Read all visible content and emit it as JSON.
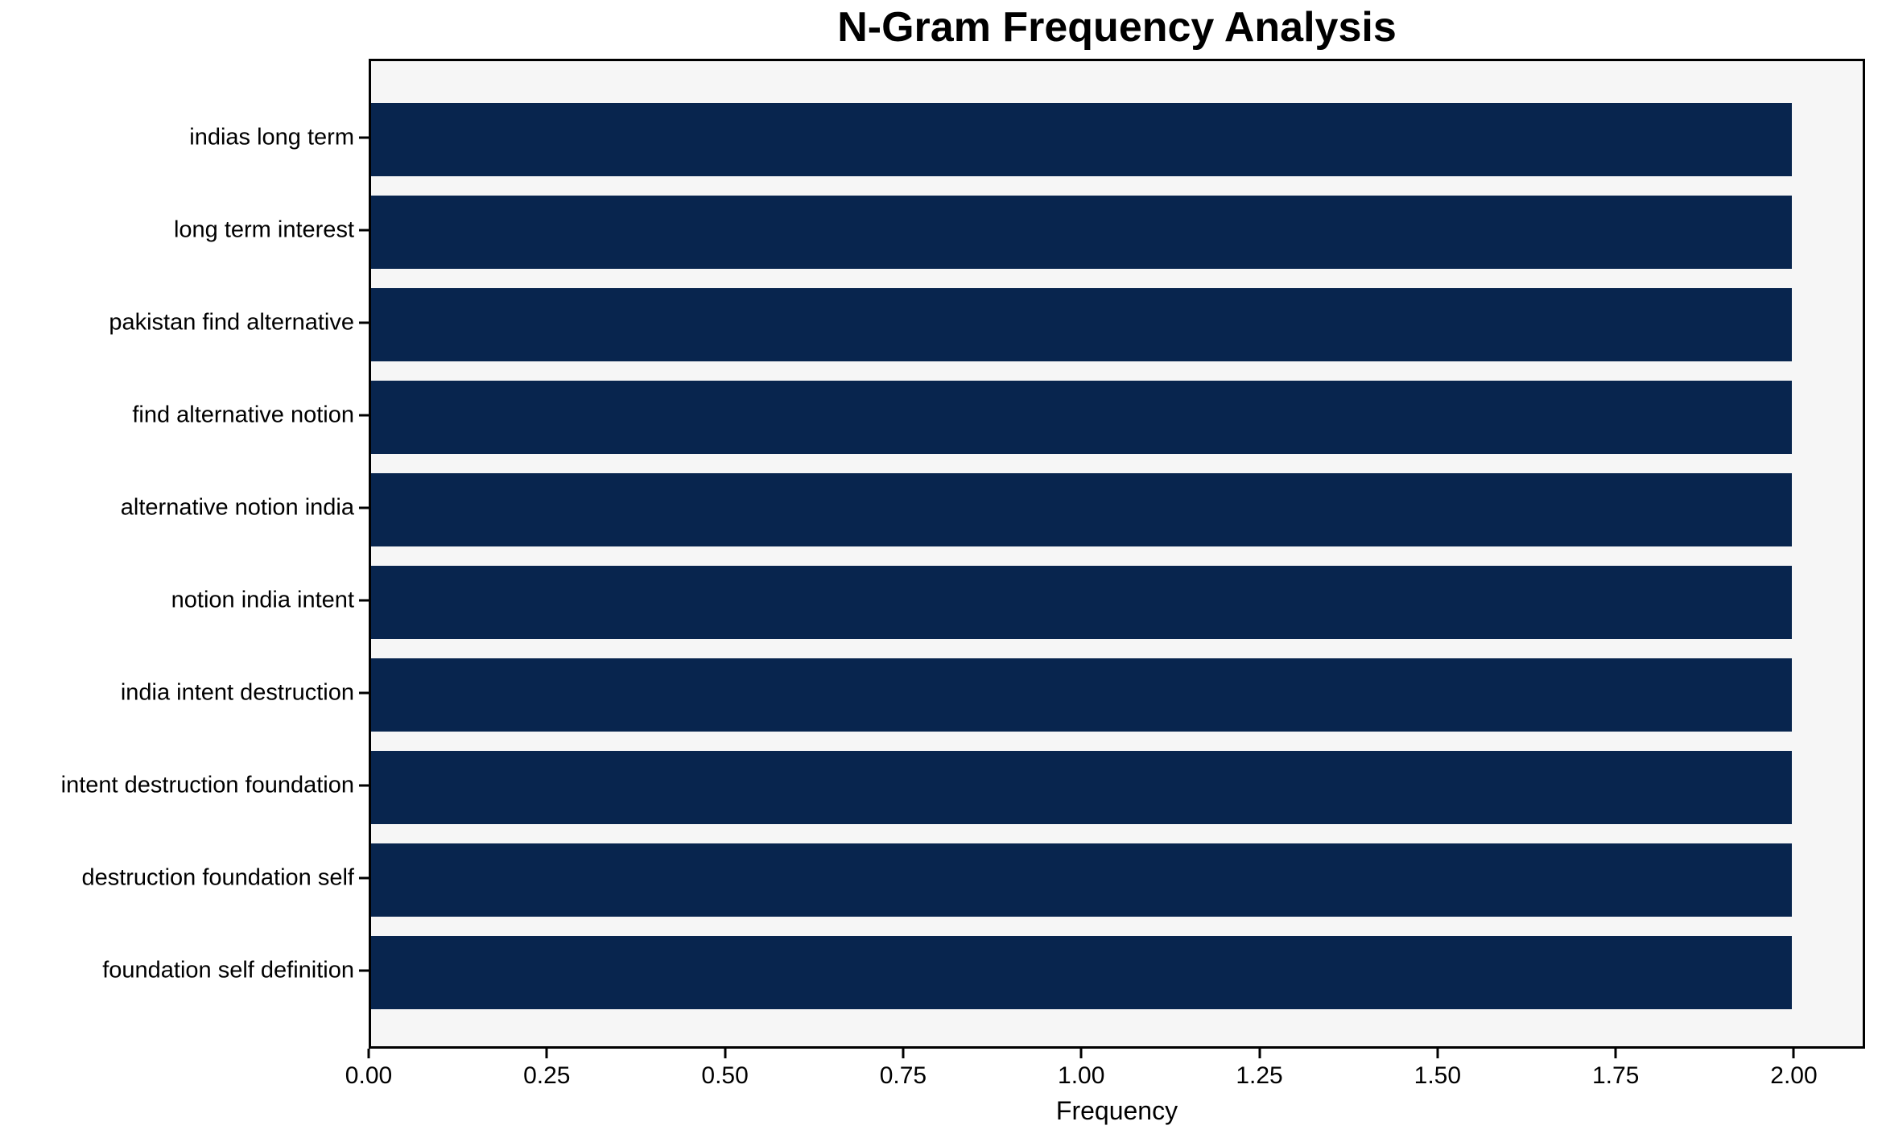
{
  "chart_data": {
    "type": "bar",
    "orientation": "horizontal",
    "title": "N-Gram Frequency Analysis",
    "xlabel": "Frequency",
    "ylabel": "",
    "categories": [
      "indias long term",
      "long term interest",
      "pakistan find alternative",
      "find alternative notion",
      "alternative notion india",
      "notion india intent",
      "india intent destruction",
      "intent destruction foundation",
      "destruction foundation self",
      "foundation self definition"
    ],
    "values": [
      2,
      2,
      2,
      2,
      2,
      2,
      2,
      2,
      2,
      2
    ],
    "xlim": [
      0,
      2.1
    ],
    "xticks": [
      {
        "label": "0.00",
        "value": 0.0
      },
      {
        "label": "0.25",
        "value": 0.25
      },
      {
        "label": "0.50",
        "value": 0.5
      },
      {
        "label": "0.75",
        "value": 0.75
      },
      {
        "label": "1.00",
        "value": 1.0
      },
      {
        "label": "1.25",
        "value": 1.25
      },
      {
        "label": "1.50",
        "value": 1.5
      },
      {
        "label": "1.75",
        "value": 1.75
      },
      {
        "label": "2.00",
        "value": 2.0
      }
    ],
    "grid": false,
    "legend_position": "none",
    "colors": {
      "bar": "#08254e",
      "plot_background": "#f6f6f6",
      "figure_background": "#ffffff",
      "spine": "#000000",
      "text": "#000000"
    }
  }
}
